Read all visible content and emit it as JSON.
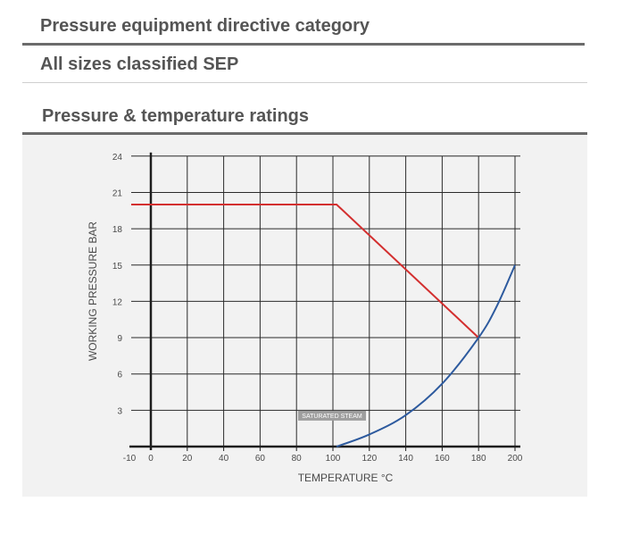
{
  "headings": {
    "ped_category": "Pressure equipment directive category",
    "classification": "All sizes classified SEP",
    "ratings": "Pressure & temperature ratings"
  },
  "chart_data": {
    "type": "line",
    "xlabel": "TEMPERATURE °C",
    "ylabel": "WORKING PRESSURE BAR",
    "xlim": [
      -10,
      200
    ],
    "ylim": [
      0,
      24
    ],
    "x_ticks": [
      -10,
      0,
      20,
      40,
      60,
      80,
      100,
      120,
      140,
      160,
      180,
      200
    ],
    "y_ticks": [
      3,
      6,
      9,
      12,
      15,
      18,
      21,
      24
    ],
    "grid": true,
    "annotations": [
      {
        "text": "SATURATED STEAM",
        "x": 100,
        "y": 2
      }
    ],
    "series": [
      {
        "color": "#d32f2f",
        "x": [
          -10,
          102,
          180
        ],
        "y": [
          20,
          20,
          9
        ]
      },
      {
        "color": "#2d5a9e",
        "x": [
          102,
          120,
          140,
          160,
          180,
          190,
          200
        ],
        "y": [
          0,
          1,
          2.6,
          5.2,
          9,
          11.6,
          15
        ]
      }
    ]
  }
}
